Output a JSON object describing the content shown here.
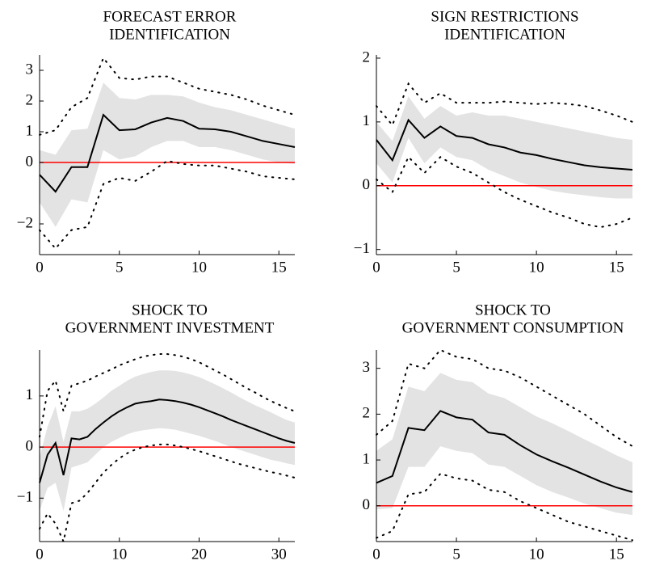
{
  "chart_data": [
    {
      "type": "line",
      "title": [
        "FORECAST ERROR",
        "IDENTIFICATION"
      ],
      "x": [
        0,
        1,
        2,
        3,
        4,
        5,
        6,
        7,
        8,
        9,
        10,
        11,
        12,
        13,
        14,
        15,
        16
      ],
      "xlim": [
        0,
        16
      ],
      "xticks": [
        0,
        5,
        10,
        15
      ],
      "ylim": [
        -3.0,
        3.5
      ],
      "yticks": [
        {
          "value": -2,
          "label": "−2"
        },
        0,
        1,
        2,
        3
      ],
      "hline": 0,
      "hline_color": "#ff0000",
      "band": {
        "color": "#e3e3e3",
        "lower": [
          -1.3,
          -2.1,
          -1.2,
          -1.3,
          0.4,
          0.1,
          0.2,
          0.5,
          0.7,
          0.7,
          0.5,
          0.5,
          0.4,
          0.25,
          0.1,
          0.0,
          -0.05
        ],
        "upper": [
          0.4,
          0.25,
          1.05,
          1.1,
          2.6,
          2.1,
          2.05,
          2.2,
          2.2,
          2.15,
          1.95,
          1.8,
          1.7,
          1.55,
          1.4,
          1.25,
          1.1
        ]
      },
      "series": [
        {
          "color": "#000000",
          "dash": "solid",
          "values": [
            -0.4,
            -0.95,
            -0.15,
            -0.15,
            1.55,
            1.05,
            1.08,
            1.3,
            1.45,
            1.35,
            1.1,
            1.08,
            1.0,
            0.85,
            0.7,
            0.6,
            0.5
          ]
        },
        {
          "color": "#000000",
          "dash": "dotted",
          "values": [
            0.9,
            1.05,
            1.8,
            2.1,
            3.4,
            2.75,
            2.7,
            2.8,
            2.8,
            2.6,
            2.4,
            2.3,
            2.2,
            2.05,
            1.85,
            1.7,
            1.55
          ]
        },
        {
          "color": "#000000",
          "dash": "dotted",
          "values": [
            -2.2,
            -2.8,
            -2.2,
            -2.1,
            -0.7,
            -0.5,
            -0.6,
            -0.3,
            0.05,
            -0.05,
            -0.1,
            -0.1,
            -0.2,
            -0.3,
            -0.45,
            -0.5,
            -0.55
          ]
        }
      ]
    },
    {
      "type": "line",
      "title": [
        "SIGN RESTRICTIONS",
        "IDENTIFICATION"
      ],
      "x": [
        0,
        1,
        2,
        3,
        4,
        5,
        6,
        7,
        8,
        9,
        10,
        11,
        12,
        13,
        14,
        15,
        16
      ],
      "xlim": [
        0,
        16
      ],
      "xticks": [
        0,
        5,
        10,
        15
      ],
      "ylim": [
        -1.08,
        2.05
      ],
      "yticks": [
        {
          "value": -1,
          "label": "−1"
        },
        0,
        1,
        2
      ],
      "hline": 0,
      "hline_color": "#ff0000",
      "band": {
        "color": "#e3e3e3",
        "lower": [
          0.35,
          0.05,
          0.75,
          0.35,
          0.6,
          0.45,
          0.4,
          0.25,
          0.15,
          0.05,
          -0.02,
          -0.08,
          -0.12,
          -0.15,
          -0.18,
          -0.2,
          -0.2
        ],
        "upper": [
          1.0,
          0.7,
          1.4,
          1.05,
          1.25,
          1.1,
          1.15,
          1.1,
          1.1,
          1.05,
          1.0,
          0.95,
          0.9,
          0.85,
          0.8,
          0.75,
          0.72
        ]
      },
      "series": [
        {
          "color": "#000000",
          "dash": "solid",
          "values": [
            0.72,
            0.4,
            1.03,
            0.75,
            0.93,
            0.78,
            0.75,
            0.65,
            0.6,
            0.52,
            0.48,
            0.42,
            0.37,
            0.32,
            0.29,
            0.27,
            0.25
          ]
        },
        {
          "color": "#000000",
          "dash": "dotted",
          "values": [
            1.25,
            0.95,
            1.6,
            1.3,
            1.45,
            1.3,
            1.3,
            1.3,
            1.32,
            1.3,
            1.28,
            1.3,
            1.28,
            1.25,
            1.18,
            1.1,
            1.0
          ]
        },
        {
          "color": "#000000",
          "dash": "dotted",
          "values": [
            0.1,
            -0.1,
            0.45,
            0.2,
            0.45,
            0.3,
            0.2,
            0.05,
            -0.1,
            -0.22,
            -0.32,
            -0.42,
            -0.5,
            -0.6,
            -0.65,
            -0.6,
            -0.5
          ]
        }
      ]
    },
    {
      "type": "line",
      "title": [
        "SHOCK TO",
        "GOVERNMENT INVESTMENT"
      ],
      "x": [
        0,
        1,
        2,
        3,
        4,
        5,
        6,
        7,
        8,
        9,
        10,
        11,
        12,
        13,
        14,
        15,
        16,
        17,
        18,
        19,
        20,
        21,
        22,
        23,
        24,
        25,
        26,
        27,
        28,
        29,
        30,
        31,
        32
      ],
      "xlim": [
        0,
        32
      ],
      "xticks": [
        0,
        10,
        20,
        30
      ],
      "ylim": [
        -1.85,
        1.9
      ],
      "yticks": [
        {
          "value": -1,
          "label": "−1"
        },
        0,
        1
      ],
      "hline": 0,
      "hline_color": "#ff0000",
      "band": {
        "color": "#e3e3e3",
        "lower": [
          -1.25,
          -0.8,
          -0.7,
          -1.25,
          -0.4,
          -0.35,
          -0.3,
          -0.15,
          0.0,
          0.1,
          0.18,
          0.25,
          0.3,
          0.33,
          0.35,
          0.37,
          0.36,
          0.34,
          0.3,
          0.26,
          0.22,
          0.17,
          0.12,
          0.06,
          0.0,
          -0.05,
          -0.1,
          -0.15,
          -0.2,
          -0.25,
          -0.28,
          -0.32,
          -0.35
        ],
        "upper": [
          -0.2,
          0.4,
          0.8,
          0.1,
          0.7,
          0.7,
          0.75,
          0.85,
          0.97,
          1.1,
          1.2,
          1.3,
          1.38,
          1.43,
          1.47,
          1.5,
          1.5,
          1.49,
          1.46,
          1.42,
          1.37,
          1.3,
          1.23,
          1.15,
          1.07,
          0.98,
          0.9,
          0.82,
          0.75,
          0.68,
          0.6,
          0.53,
          0.48
        ]
      },
      "series": [
        {
          "color": "#000000",
          "dash": "solid",
          "values": [
            -0.7,
            -0.15,
            0.08,
            -0.55,
            0.17,
            0.15,
            0.2,
            0.35,
            0.48,
            0.6,
            0.7,
            0.78,
            0.85,
            0.88,
            0.9,
            0.93,
            0.92,
            0.9,
            0.87,
            0.83,
            0.78,
            0.72,
            0.66,
            0.6,
            0.53,
            0.47,
            0.41,
            0.35,
            0.29,
            0.23,
            0.17,
            0.12,
            0.08
          ]
        },
        {
          "color": "#000000",
          "dash": "dotted",
          "values": [
            0.2,
            1.1,
            1.3,
            0.7,
            1.2,
            1.25,
            1.3,
            1.38,
            1.45,
            1.52,
            1.6,
            1.66,
            1.72,
            1.77,
            1.8,
            1.82,
            1.82,
            1.8,
            1.77,
            1.72,
            1.66,
            1.58,
            1.5,
            1.42,
            1.33,
            1.24,
            1.15,
            1.07,
            0.98,
            0.9,
            0.83,
            0.76,
            0.7
          ]
        },
        {
          "color": "#000000",
          "dash": "dotted",
          "values": [
            -1.6,
            -1.3,
            -1.5,
            -1.85,
            -1.1,
            -1.05,
            -0.9,
            -0.7,
            -0.5,
            -0.35,
            -0.22,
            -0.12,
            -0.05,
            0.0,
            0.03,
            0.05,
            0.05,
            0.03,
            0.0,
            -0.04,
            -0.08,
            -0.13,
            -0.18,
            -0.23,
            -0.28,
            -0.33,
            -0.37,
            -0.41,
            -0.45,
            -0.49,
            -0.52,
            -0.56,
            -0.6
          ]
        }
      ]
    },
    {
      "type": "line",
      "title": [
        "SHOCK TO",
        "GOVERNMENT CONSUMPTION"
      ],
      "x": [
        0,
        1,
        2,
        3,
        4,
        5,
        6,
        7,
        8,
        9,
        10,
        11,
        12,
        13,
        14,
        15,
        16
      ],
      "xlim": [
        0,
        16
      ],
      "xticks": [
        0,
        5,
        10,
        15
      ],
      "ylim": [
        -0.78,
        3.4
      ],
      "yticks": [
        0,
        1,
        2,
        3
      ],
      "hline": 0,
      "hline_color": "#ff0000",
      "band": {
        "color": "#e3e3e3",
        "lower": [
          -0.08,
          -0.05,
          0.85,
          0.85,
          1.3,
          1.2,
          1.15,
          0.9,
          0.85,
          0.65,
          0.45,
          0.3,
          0.18,
          0.05,
          -0.05,
          -0.15,
          -0.2
        ],
        "upper": [
          1.2,
          1.45,
          2.6,
          2.5,
          2.9,
          2.75,
          2.7,
          2.45,
          2.35,
          2.15,
          1.95,
          1.8,
          1.63,
          1.45,
          1.28,
          1.1,
          0.95
        ]
      },
      "series": [
        {
          "color": "#000000",
          "dash": "solid",
          "values": [
            0.5,
            0.65,
            1.7,
            1.65,
            2.07,
            1.93,
            1.88,
            1.6,
            1.55,
            1.32,
            1.12,
            0.97,
            0.83,
            0.68,
            0.53,
            0.4,
            0.3
          ]
        },
        {
          "color": "#000000",
          "dash": "dotted",
          "values": [
            1.55,
            1.85,
            3.1,
            3.0,
            3.4,
            3.25,
            3.2,
            3.0,
            2.95,
            2.8,
            2.6,
            2.4,
            2.2,
            2.0,
            1.75,
            1.5,
            1.3
          ]
        },
        {
          "color": "#000000",
          "dash": "dotted",
          "values": [
            -0.7,
            -0.55,
            0.25,
            0.3,
            0.7,
            0.6,
            0.55,
            0.35,
            0.3,
            0.1,
            -0.05,
            -0.2,
            -0.35,
            -0.45,
            -0.55,
            -0.65,
            -0.75
          ]
        }
      ]
    }
  ]
}
